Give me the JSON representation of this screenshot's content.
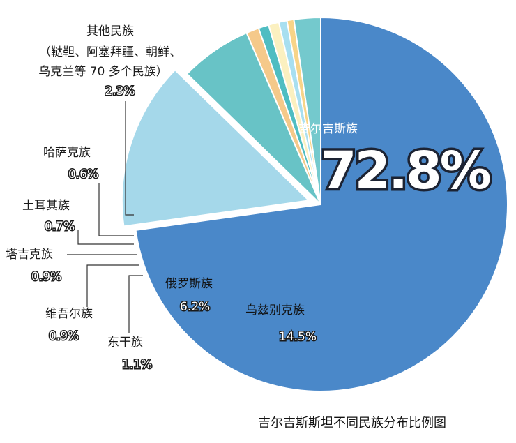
{
  "chart_data": {
    "type": "pie",
    "title": "吉尔吉斯斯坦不同民族分布比例图",
    "slices": [
      {
        "label": "吉尔吉斯族",
        "value": 72.8,
        "display": "72.8%",
        "color": "#4a88c9"
      },
      {
        "label": "乌兹别克族",
        "value": 14.5,
        "display": "14.5%",
        "color": "#a5d8ea"
      },
      {
        "label": "俄罗斯族",
        "value": 6.2,
        "display": "6.2%",
        "color": "#68c3c6"
      },
      {
        "label": "东干族",
        "value": 1.1,
        "display": "1.1%",
        "color": "#f5c98a"
      },
      {
        "label": "维吾尔族",
        "value": 0.9,
        "display": "0.9%",
        "color": "#4fbdc2"
      },
      {
        "label": "塔吉克族",
        "value": 0.9,
        "display": "0.9%",
        "color": "#fbf0c0"
      },
      {
        "label": "土耳其族",
        "value": 0.7,
        "display": "0.7%",
        "color": "#a8dff0"
      },
      {
        "label": "哈萨克族",
        "value": 0.6,
        "display": "0.6%",
        "color": "#f8d488"
      },
      {
        "label": "其他民族",
        "note": [
          "（鞑靼、阿塞拜疆、朝鲜、",
          "乌克兰等 70 多个民族）"
        ],
        "value": 2.3,
        "display": "2.3%",
        "color": "#74c9cd"
      }
    ]
  }
}
